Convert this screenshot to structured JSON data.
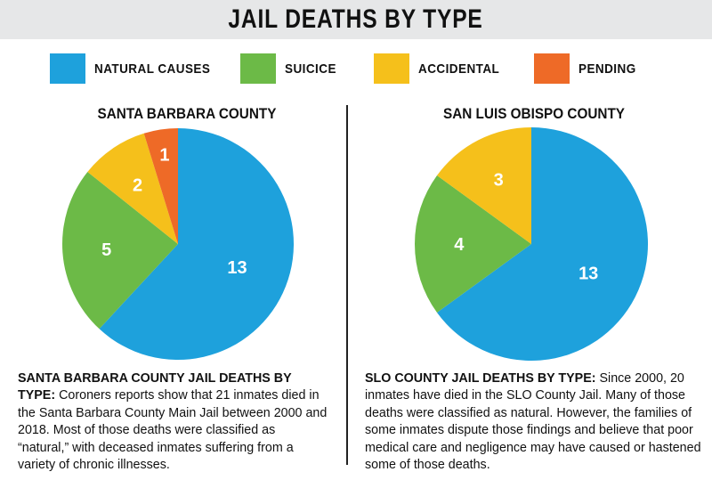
{
  "title": "JAIL DEATHS BY TYPE",
  "legend": [
    {
      "label": "NATURAL CAUSES",
      "color": "#1ea1dc"
    },
    {
      "label": "SUICICE",
      "color": "#6cba47"
    },
    {
      "label": "ACCIDENTAL",
      "color": "#f5c01b"
    },
    {
      "label": "PENDING",
      "color": "#ee6a27"
    }
  ],
  "chart_data": [
    {
      "type": "pie",
      "title": "SANTA BARBARA COUNTY",
      "categories": [
        "NATURAL CAUSES",
        "SUICICE",
        "ACCIDENTAL",
        "PENDING"
      ],
      "values": [
        13,
        5,
        2,
        1
      ],
      "colors": [
        "#1ea1dc",
        "#6cba47",
        "#f5c01b",
        "#ee6a27"
      ]
    },
    {
      "type": "pie",
      "title": "SAN LUIS OBISPO COUNTY",
      "categories": [
        "NATURAL CAUSES",
        "SUICICE",
        "ACCIDENTAL"
      ],
      "values": [
        13,
        4,
        3
      ],
      "colors": [
        "#1ea1dc",
        "#6cba47",
        "#f5c01b"
      ]
    }
  ],
  "captions": {
    "left_lead": "SANTA BARBARA COUNTY JAIL DEATHS BY TYPE:",
    "left_body": "Coroners reports show that 21 inmates died in the Santa Barbara County Main Jail between 2000 and 2018. Most of those deaths were classified as “natural,” with deceased inmates suffering from a variety of chronic illnesses.",
    "right_lead": "SLO COUNTY JAIL DEATHS BY TYPE:",
    "right_body": "Since 2000, 20 inmates have died in the SLO County Jail. Many of those deaths were classified as natural. However, the families of some inmates dispute those findings and believe that poor medical care and negligence may have caused or hastened some of those deaths."
  }
}
